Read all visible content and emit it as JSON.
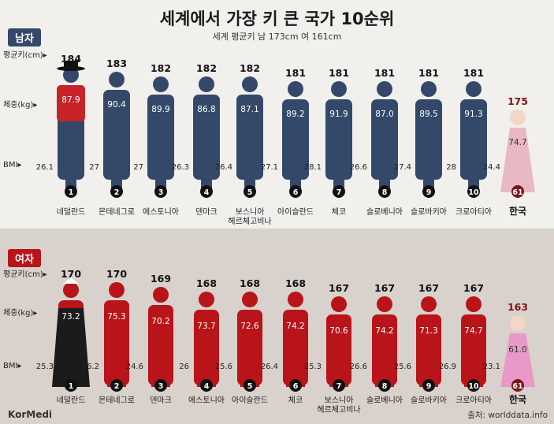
{
  "title": "세계에서 가장 키 큰 국가 10순위",
  "subtitle": "세계 평균키 남 173cm 여 161cm",
  "labels": {
    "male": "남자",
    "female": "여자",
    "height": "평균키(cm)▸",
    "weight": "체중(kg)▸",
    "bmi": "BMI▸"
  },
  "source": "출처: worlddata.info",
  "logo": "KorMedi",
  "colors": {
    "male": "#34496a",
    "female": "#b8141a",
    "korea": "#7a1616",
    "korea_male_figure": "#e8b8c4",
    "korea_female_figure": "#e899c8"
  },
  "chart_data": [
    {
      "type": "bar",
      "group": "남자",
      "categories": [
        "네덜란드",
        "몬테네그로",
        "에스토니아",
        "덴마크",
        "보스니아\n헤르체고비나",
        "아이슬란드",
        "체코",
        "슬로베니아",
        "슬로바키아",
        "크로아티아",
        "한국"
      ],
      "ranks": [
        "1",
        "2",
        "3",
        "4",
        "5",
        "6",
        "7",
        "8",
        "9",
        "10",
        "61"
      ],
      "height": [
        184,
        183,
        182,
        182,
        182,
        181,
        181,
        181,
        181,
        181,
        175
      ],
      "weight": [
        87.9,
        90.4,
        89.9,
        86.8,
        87.1,
        89.2,
        91.9,
        87.0,
        89.5,
        91.3,
        74.7
      ],
      "weight_labels": [
        "87.9",
        "90.4",
        "89.9",
        "86.8",
        "87.1",
        "89.2",
        "91.9",
        "87.0",
        "89.5",
        "91.3",
        "74.7"
      ],
      "bmi": [
        26.1,
        27,
        27,
        26.3,
        26.4,
        27.1,
        28.1,
        26.6,
        27.4,
        28,
        24.4
      ],
      "bmi_labels": [
        "26.1",
        "27",
        "27",
        "26.3",
        "26.4",
        "27.1",
        "28.1",
        "26.6",
        "27.4",
        "28",
        "24.4"
      ]
    },
    {
      "type": "bar",
      "group": "여자",
      "categories": [
        "네덜란드",
        "몬테네그로",
        "덴마크",
        "에스토니아",
        "아이슬란드",
        "체코",
        "보스니아\n헤르체고비나",
        "슬로베니아",
        "슬로바키아",
        "크로아티아",
        "한국"
      ],
      "ranks": [
        "1",
        "2",
        "3",
        "4",
        "5",
        "6",
        "7",
        "8",
        "9",
        "10",
        "61"
      ],
      "height": [
        170,
        170,
        169,
        168,
        168,
        168,
        167,
        167,
        167,
        167,
        163
      ],
      "weight": [
        73.2,
        75.3,
        70.2,
        73.7,
        72.6,
        74.2,
        70.6,
        74.2,
        71.3,
        74.7,
        61.0
      ],
      "weight_labels": [
        "73.2",
        "75.3",
        "70.2",
        "73.7",
        "72.6",
        "74.2",
        "70.6",
        "74.2",
        "71.3",
        "74.7",
        "61.0"
      ],
      "bmi": [
        25.3,
        26.2,
        24.6,
        26,
        25.6,
        26.4,
        25.3,
        26.6,
        25.6,
        26.9,
        23.1
      ],
      "bmi_labels": [
        "25.3",
        "26.2",
        "24.6",
        "26",
        "25.6",
        "26.4",
        "25.3",
        "26.6",
        "25.6",
        "26.9",
        "23.1"
      ]
    }
  ]
}
